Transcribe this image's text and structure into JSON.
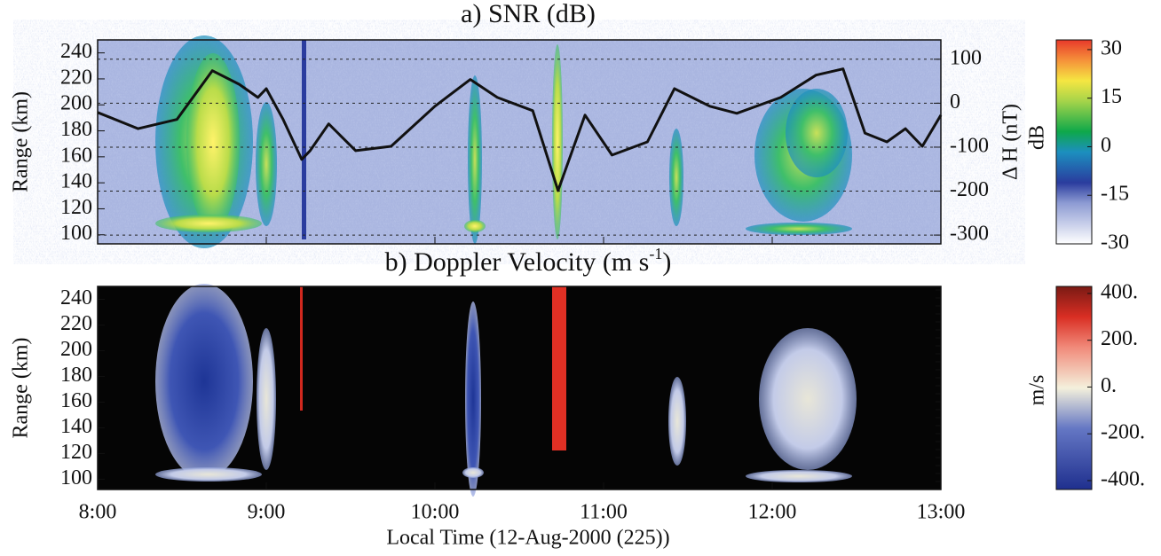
{
  "chart_data": [
    {
      "type": "heatmap",
      "title": "a) SNR (dB)",
      "y_label": "Range (km)",
      "ylim": [
        93,
        250
      ],
      "yticks": [
        100,
        120,
        140,
        160,
        180,
        200,
        220,
        240
      ],
      "xlim": [
        8,
        13
      ],
      "y2_label": "Δ H (nT)",
      "y2lim": [
        -320,
        144
      ],
      "y2ticks": [
        100,
        0,
        -100,
        -200,
        -300
      ],
      "grid": true,
      "x": [
        8.0,
        8.24,
        8.47,
        8.68,
        8.84,
        8.95,
        9.0,
        9.1,
        9.21,
        9.26,
        9.37,
        9.53,
        9.74,
        10.0,
        10.21,
        10.37,
        10.58,
        10.73,
        10.89,
        11.05,
        11.26,
        11.42,
        11.63,
        11.79,
        12.05,
        12.26,
        12.42,
        12.55,
        12.68,
        12.79,
        12.89,
        13.0
      ],
      "series": [
        {
          "color": "#111111",
          "axis": "y2",
          "values": [
            -21,
            -58,
            -37,
            74,
            43,
            13,
            33,
            -37,
            -128,
            -108,
            -47,
            -108,
            -98,
            -7,
            54,
            13,
            -17,
            -199,
            -27,
            -118,
            -88,
            33,
            -7,
            -23,
            13,
            64,
            78,
            -68,
            -88,
            -58,
            -98,
            -27
          ]
        }
      ],
      "colorbar_label": "dB",
      "clim": [
        -30,
        33
      ],
      "cticks": [
        30,
        15,
        0,
        -15,
        -30
      ]
    },
    {
      "type": "heatmap",
      "title": "b) Doppler Velocity (m s",
      "title_sup": "-1",
      "title_end": ")",
      "y_label": "Range (km)",
      "ylim": [
        92,
        250
      ],
      "yticks": [
        100,
        120,
        140,
        160,
        180,
        200,
        220,
        240
      ],
      "xlim": [
        8,
        13
      ],
      "xticks": [
        {
          "value": 8,
          "label": "8:00"
        },
        {
          "value": 9,
          "label": "9:00"
        },
        {
          "value": 10,
          "label": "10:00"
        },
        {
          "value": 11,
          "label": "11:00"
        },
        {
          "value": 12,
          "label": "12:00"
        },
        {
          "value": 13,
          "label": "13:00"
        }
      ],
      "x_label": "Local Time (12-Aug-2000 (225))",
      "colorbar_label": "m/s",
      "clim": [
        -438,
        430
      ],
      "cticks": [
        {
          "value": 400,
          "label": "400."
        },
        {
          "value": 200,
          "label": "200."
        },
        {
          "value": 0,
          "label": "0."
        },
        {
          "value": -200,
          "label": "-200."
        },
        {
          "value": -400,
          "label": "-400."
        }
      ]
    }
  ]
}
